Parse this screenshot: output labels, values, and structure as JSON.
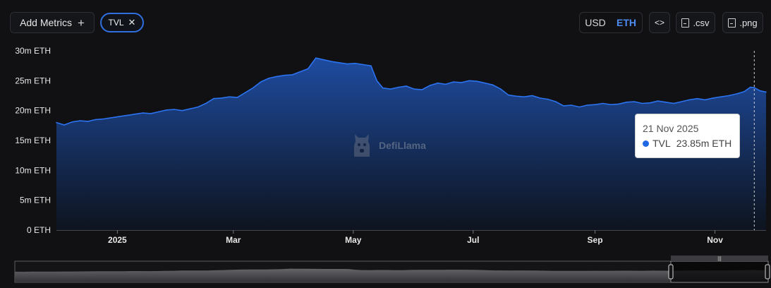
{
  "toolbar": {
    "add_metrics_label": "Add Metrics",
    "chip_label": "TVL",
    "currency_options": [
      "USD",
      "ETH"
    ],
    "currency_selected": "ETH",
    "embed_label": "<>",
    "csv_label": ".csv",
    "png_label": ".png"
  },
  "tooltip": {
    "date": "21 Nov 2025",
    "series": "TVL",
    "value": "23.85m ETH"
  },
  "watermark": {
    "text": "DefiLlama"
  },
  "colors": {
    "accent": "#2f6fe0",
    "line": "#2b73f0",
    "area_top": "#1f4fa8",
    "area_bottom": "#0d1420"
  },
  "chart_data": {
    "type": "area",
    "title": "",
    "xlabel": "",
    "ylabel": "",
    "ylim": [
      0,
      30
    ],
    "y_ticks": [
      {
        "value": 0,
        "label": "0 ETH"
      },
      {
        "value": 5,
        "label": "5m ETH"
      },
      {
        "value": 10,
        "label": "10m ETH"
      },
      {
        "value": 15,
        "label": "15m ETH"
      },
      {
        "value": 20,
        "label": "20m ETH"
      },
      {
        "value": 25,
        "label": "25m ETH"
      },
      {
        "value": 30,
        "label": "30m ETH"
      }
    ],
    "xlim": [
      "2024-12-01",
      "2025-11-27"
    ],
    "x_ticks": [
      {
        "date": "2025-01-01",
        "label": "2025"
      },
      {
        "date": "2025-03-01",
        "label": "Mar"
      },
      {
        "date": "2025-05-01",
        "label": "May"
      },
      {
        "date": "2025-07-01",
        "label": "Jul"
      },
      {
        "date": "2025-09-01",
        "label": "Sep"
      },
      {
        "date": "2025-11-01",
        "label": "Nov"
      }
    ],
    "grid": false,
    "legend": "none",
    "series": [
      {
        "name": "TVL",
        "unit": "m ETH",
        "points": [
          [
            "2024-12-01",
            18.0
          ],
          [
            "2024-12-05",
            17.6
          ],
          [
            "2024-12-09",
            18.1
          ],
          [
            "2024-12-13",
            18.3
          ],
          [
            "2024-12-17",
            18.2
          ],
          [
            "2024-12-21",
            18.5
          ],
          [
            "2024-12-25",
            18.6
          ],
          [
            "2024-12-29",
            18.8
          ],
          [
            "2025-01-02",
            19.0
          ],
          [
            "2025-01-06",
            19.2
          ],
          [
            "2025-01-10",
            19.4
          ],
          [
            "2025-01-14",
            19.6
          ],
          [
            "2025-01-18",
            19.5
          ],
          [
            "2025-01-22",
            19.8
          ],
          [
            "2025-01-26",
            20.1
          ],
          [
            "2025-01-30",
            20.2
          ],
          [
            "2025-02-03",
            20.0
          ],
          [
            "2025-02-07",
            20.3
          ],
          [
            "2025-02-11",
            20.6
          ],
          [
            "2025-02-15",
            21.2
          ],
          [
            "2025-02-19",
            22.0
          ],
          [
            "2025-02-23",
            22.1
          ],
          [
            "2025-02-27",
            22.3
          ],
          [
            "2025-03-03",
            22.2
          ],
          [
            "2025-03-07",
            23.0
          ],
          [
            "2025-03-11",
            23.8
          ],
          [
            "2025-03-15",
            24.8
          ],
          [
            "2025-03-19",
            25.4
          ],
          [
            "2025-03-23",
            25.7
          ],
          [
            "2025-03-27",
            25.9
          ],
          [
            "2025-03-31",
            26.0
          ],
          [
            "2025-04-04",
            26.5
          ],
          [
            "2025-04-08",
            27.0
          ],
          [
            "2025-04-12",
            28.8
          ],
          [
            "2025-04-16",
            28.5
          ],
          [
            "2025-04-20",
            28.2
          ],
          [
            "2025-04-24",
            28.0
          ],
          [
            "2025-04-28",
            27.8
          ],
          [
            "2025-05-02",
            27.9
          ],
          [
            "2025-05-06",
            27.7
          ],
          [
            "2025-05-10",
            27.5
          ],
          [
            "2025-05-13",
            25.0
          ],
          [
            "2025-05-16",
            23.8
          ],
          [
            "2025-05-20",
            23.6
          ],
          [
            "2025-05-24",
            23.9
          ],
          [
            "2025-05-28",
            24.1
          ],
          [
            "2025-06-01",
            23.6
          ],
          [
            "2025-06-05",
            23.5
          ],
          [
            "2025-06-09",
            24.2
          ],
          [
            "2025-06-13",
            24.6
          ],
          [
            "2025-06-17",
            24.4
          ],
          [
            "2025-06-21",
            24.8
          ],
          [
            "2025-06-25",
            24.7
          ],
          [
            "2025-06-29",
            25.0
          ],
          [
            "2025-07-03",
            24.9
          ],
          [
            "2025-07-07",
            24.6
          ],
          [
            "2025-07-11",
            24.3
          ],
          [
            "2025-07-15",
            23.6
          ],
          [
            "2025-07-19",
            22.6
          ],
          [
            "2025-07-23",
            22.4
          ],
          [
            "2025-07-27",
            22.3
          ],
          [
            "2025-07-31",
            22.5
          ],
          [
            "2025-08-04",
            22.1
          ],
          [
            "2025-08-08",
            21.9
          ],
          [
            "2025-08-12",
            21.5
          ],
          [
            "2025-08-16",
            20.8
          ],
          [
            "2025-08-20",
            20.9
          ],
          [
            "2025-08-24",
            20.6
          ],
          [
            "2025-08-28",
            20.9
          ],
          [
            "2025-09-01",
            21.0
          ],
          [
            "2025-09-05",
            21.2
          ],
          [
            "2025-09-09",
            21.0
          ],
          [
            "2025-09-13",
            21.1
          ],
          [
            "2025-09-17",
            21.4
          ],
          [
            "2025-09-21",
            21.5
          ],
          [
            "2025-09-25",
            21.2
          ],
          [
            "2025-09-29",
            21.3
          ],
          [
            "2025-10-03",
            21.6
          ],
          [
            "2025-10-07",
            21.4
          ],
          [
            "2025-10-11",
            21.2
          ],
          [
            "2025-10-15",
            21.5
          ],
          [
            "2025-10-19",
            21.8
          ],
          [
            "2025-10-23",
            22.0
          ],
          [
            "2025-10-27",
            21.8
          ],
          [
            "2025-10-31",
            22.1
          ],
          [
            "2025-11-04",
            22.3
          ],
          [
            "2025-11-08",
            22.5
          ],
          [
            "2025-11-12",
            22.8
          ],
          [
            "2025-11-16",
            23.2
          ],
          [
            "2025-11-19",
            23.9
          ],
          [
            "2025-11-21",
            23.85
          ],
          [
            "2025-11-24",
            23.3
          ],
          [
            "2025-11-27",
            23.1
          ]
        ]
      }
    ],
    "hover_date": "2025-11-21"
  }
}
